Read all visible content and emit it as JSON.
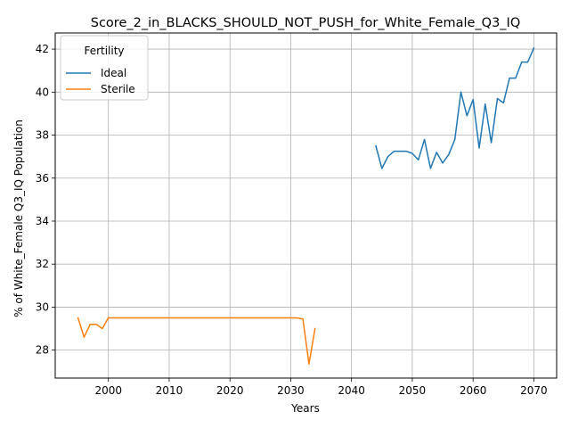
{
  "chart_data": {
    "type": "line",
    "title": "Score_2_in_BLACKS_SHOULD_NOT_PUSH_for_White_Female_Q3_IQ",
    "xlabel": "Years",
    "ylabel": "% of White_Female Q3_IQ Population",
    "xlim": [
      1991.25,
      2073.75
    ],
    "ylim": [
      26.7,
      42.75
    ],
    "xticks": [
      2000,
      2010,
      2020,
      2030,
      2040,
      2050,
      2060,
      2070
    ],
    "yticks": [
      28,
      30,
      32,
      34,
      36,
      38,
      40,
      42
    ],
    "grid": true,
    "legend": {
      "title": "Fertility",
      "position": "top-left"
    },
    "series": [
      {
        "name": "Ideal",
        "color": "#1f77b4",
        "x": [
          2044,
          2045,
          2046,
          2047,
          2048,
          2049,
          2050,
          2051,
          2052,
          2053,
          2054,
          2055,
          2056,
          2057,
          2058,
          2059,
          2060,
          2061,
          2062,
          2063,
          2064,
          2065,
          2066,
          2067,
          2068,
          2069,
          2070
        ],
        "y": [
          37.5,
          36.45,
          37.0,
          37.25,
          37.25,
          37.25,
          37.15,
          36.85,
          37.8,
          36.45,
          37.2,
          36.7,
          37.1,
          37.8,
          40.0,
          38.9,
          39.65,
          37.4,
          39.45,
          37.65,
          39.7,
          39.5,
          40.65,
          40.65,
          41.4,
          41.4,
          42.05
        ]
      },
      {
        "name": "Sterile",
        "color": "#ff7f0e",
        "x": [
          1995,
          1996,
          1997,
          1998,
          1999,
          2000,
          2001,
          2002,
          2003,
          2004,
          2005,
          2006,
          2007,
          2008,
          2009,
          2010,
          2011,
          2012,
          2013,
          2014,
          2015,
          2016,
          2017,
          2018,
          2019,
          2020,
          2021,
          2022,
          2023,
          2024,
          2025,
          2026,
          2027,
          2028,
          2029,
          2030,
          2031,
          2032,
          2033,
          2034
        ],
        "y": [
          29.5,
          28.6,
          29.2,
          29.2,
          29.0,
          29.5,
          29.5,
          29.5,
          29.5,
          29.5,
          29.5,
          29.5,
          29.5,
          29.5,
          29.5,
          29.5,
          29.5,
          29.5,
          29.5,
          29.5,
          29.5,
          29.5,
          29.5,
          29.5,
          29.5,
          29.5,
          29.5,
          29.5,
          29.5,
          29.5,
          29.5,
          29.5,
          29.5,
          29.5,
          29.5,
          29.5,
          29.5,
          29.45,
          27.35,
          29.0
        ]
      }
    ]
  }
}
